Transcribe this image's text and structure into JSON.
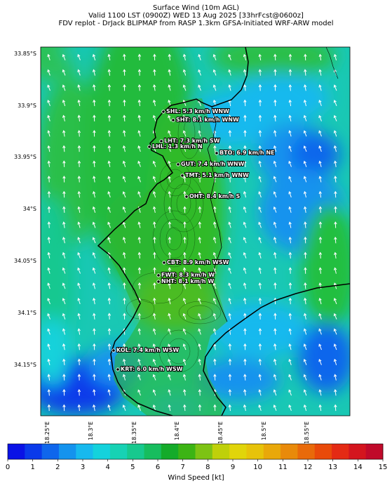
{
  "header": {
    "title": "Surface Wind (10m AGL)",
    "valid": "Valid 1100 LST (0900Z) WED 13 Aug 2025 [33hrFcst@0600z]",
    "source": "FDV replot - DrJack BLIPMAP from RASP 1.3km GFSA-Initiated WRF-ARW model"
  },
  "map": {
    "lat_labels": [
      "33.85°S",
      "33.9°S",
      "33.95°S",
      "34°S",
      "34.05°S",
      "34.1°S",
      "34.15°S"
    ],
    "lon_labels": [
      "18.25°E",
      "18.3°E",
      "18.35°E",
      "18.4°E",
      "18.45°E",
      "18.5°E",
      "18.55°E"
    ],
    "stations": [
      {
        "label": "SHL: 5.3 km/h WNW"
      },
      {
        "label": "SHT: 8.1 km/h WNW"
      },
      {
        "label": "LHT: 7.3 km/h SW"
      },
      {
        "label": "LHL: 1.3 km/h N"
      },
      {
        "label": "BTO: 6.9 km/h NE"
      },
      {
        "label": "GUT: 7.4 km/h WNW"
      },
      {
        "label": "TMT: 5.1 km/h WNW"
      },
      {
        "label": "OHT: 8.4 km/h S"
      },
      {
        "label": "CBT: 8.9 km/h WSW"
      },
      {
        "label": "FWT: 8.3 km/h W"
      },
      {
        "label": "NHT: 8.1 km/h W"
      },
      {
        "label": "KOL: 7.4 km/h WSW"
      },
      {
        "label": "KRT: 6.0 km/h WSW"
      }
    ]
  },
  "colorbar": {
    "label": "Wind Speed [kt]",
    "ticks": [
      "0",
      "1",
      "2",
      "3",
      "4",
      "5",
      "6",
      "7",
      "8",
      "9",
      "10",
      "11",
      "12",
      "13",
      "14",
      "15"
    ],
    "colors": [
      "#0a12e6",
      "#0a3aea",
      "#0f66ec",
      "#1493ee",
      "#17b9ee",
      "#14d2dc",
      "#17d2b4",
      "#17c98e",
      "#17bd5e",
      "#14ab2a",
      "#3cb414",
      "#7dc314",
      "#bfd00a",
      "#e1d50a",
      "#e7c30a",
      "#e9a80a",
      "#e98a0a",
      "#e96a0a",
      "#e94a0a",
      "#e42a14",
      "#d4151e",
      "#c00a2a"
    ]
  }
}
